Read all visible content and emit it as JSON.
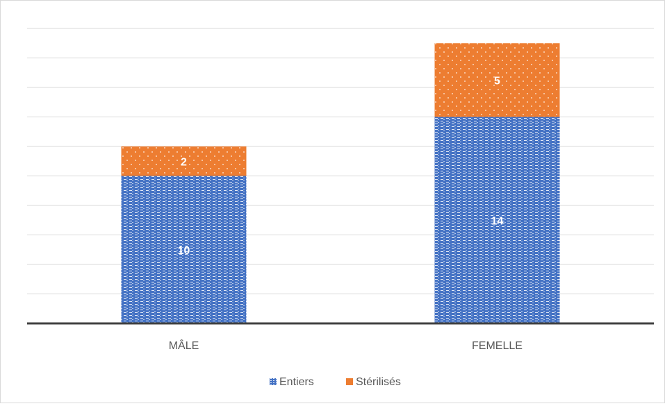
{
  "chart_data": {
    "type": "bar",
    "stacked": true,
    "categories": [
      "MÂLE",
      "FEMELLE"
    ],
    "series": [
      {
        "name": "Entiers",
        "values": [
          10,
          14
        ]
      },
      {
        "name": "Stérilisés",
        "values": [
          2,
          5
        ]
      }
    ],
    "ylim": [
      0,
      20
    ],
    "grid": true,
    "legend": "bottom",
    "colors": {
      "Entiers": "#4472c4",
      "Stérilisés": "#ed7d31",
      "gridline": "#d9d9d9",
      "axis": "#404040",
      "label": "#ffffff",
      "tick": "#595959"
    },
    "patterns": {
      "Entiers": "dense-dash",
      "Stérilisés": "sparse-dot"
    }
  }
}
